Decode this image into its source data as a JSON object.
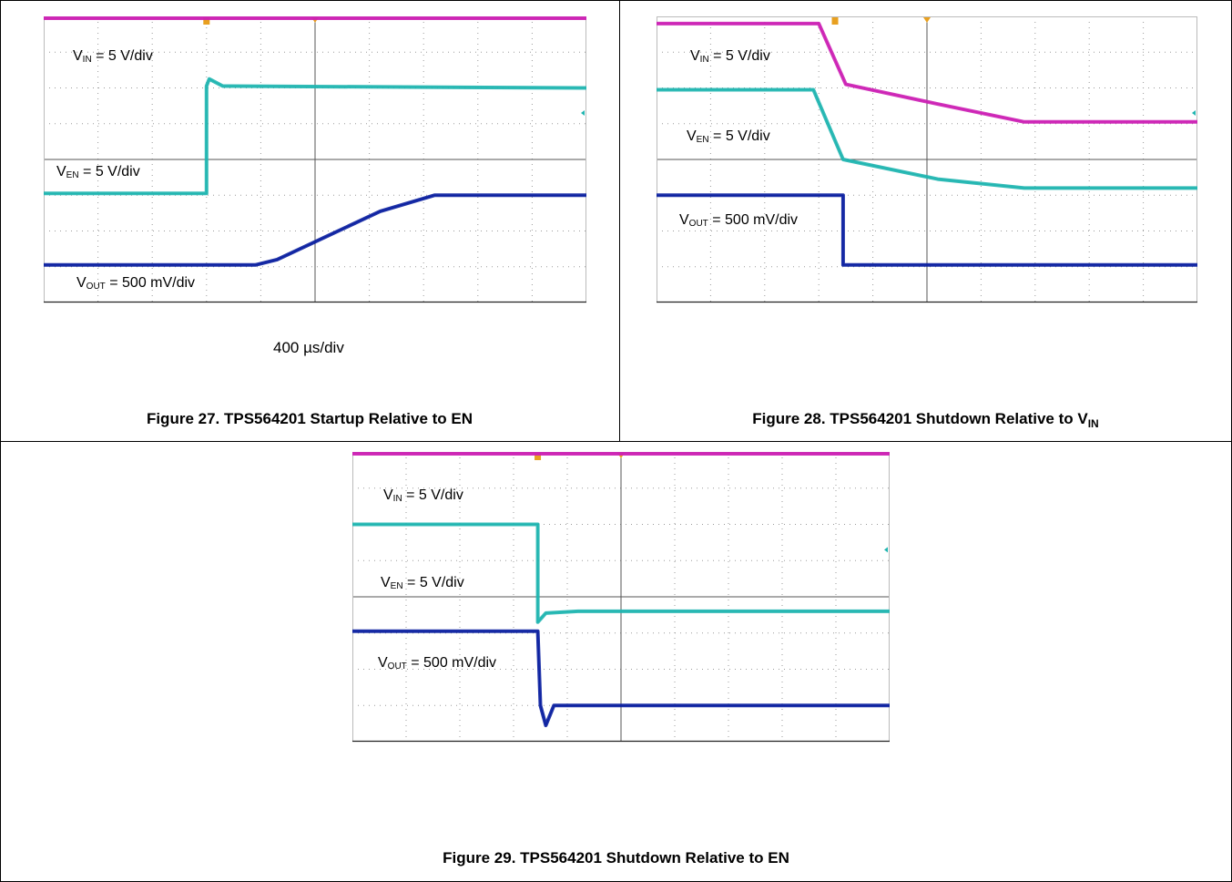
{
  "colors": {
    "vin": "#cc1fb4",
    "ven": "#1fb5b0",
    "vout": "#0a1fa0",
    "vin_label": "#8b2fa0",
    "ven_label": "#17c4d6",
    "vout_label": "#142a7a",
    "grid": "#9a9a9a",
    "marker": "#e8a020"
  },
  "figure27": {
    "caption": "Figure 27. TPS564201 Startup Relative to EN",
    "time_div": "400 µs/div",
    "labels": {
      "vin": {
        "v": "V",
        "sub": "IN",
        "rest": " = 5 V/div"
      },
      "ven": {
        "v": "V",
        "sub": "EN",
        "rest": " = 5 V/div"
      },
      "vout": {
        "v": "V",
        "sub": "OUT",
        "rest": " = 500 mV/div"
      }
    }
  },
  "figure28": {
    "caption_main": "Figure 28. TPS564201 Shutdown Relative to V",
    "caption_sub": "IN",
    "labels": {
      "vin": {
        "v": "V",
        "sub": "IN",
        "rest": " = 5 V/div"
      },
      "ven": {
        "v": "V",
        "sub": "EN",
        "rest": " = 5 V/div"
      },
      "vout": {
        "v": "V",
        "sub": "OUT",
        "rest": " = 500 mV/div"
      }
    }
  },
  "figure29": {
    "caption": "Figure 29. TPS564201 Shutdown Relative to EN",
    "labels": {
      "vin": {
        "v": "V",
        "sub": "IN",
        "rest": " = 5 V/div"
      },
      "ven": {
        "v": "V",
        "sub": "EN",
        "rest": " = 5 V/div"
      },
      "vout": {
        "v": "V",
        "sub": "OUT",
        "rest": " = 500 mV/div"
      }
    }
  },
  "chart_data": [
    {
      "type": "line",
      "title": "Figure 27. TPS564201 Startup Relative to EN",
      "x_unit": "div",
      "y_unit": "div",
      "xlim": [
        0,
        10
      ],
      "ylim": [
        0,
        8
      ],
      "grid": true,
      "series": [
        {
          "name": "V_IN = 5 V/div",
          "x": [
            0,
            10
          ],
          "y": [
            7.95,
            7.95
          ]
        },
        {
          "name": "V_EN = 5 V/div",
          "x": [
            0,
            3,
            3,
            3.05,
            3.3,
            10
          ],
          "y": [
            3.05,
            3.05,
            6.05,
            6.25,
            6.05,
            6.0
          ]
        },
        {
          "name": "V_OUT = 500 mV/div",
          "x": [
            0,
            3.9,
            4.3,
            6.2,
            7.2,
            10
          ],
          "y": [
            1.05,
            1.05,
            1.2,
            2.55,
            3.0,
            3.0
          ]
        }
      ]
    },
    {
      "type": "line",
      "title": "Figure 28. TPS564201 Shutdown Relative to VIN",
      "x_unit": "div",
      "y_unit": "div",
      "xlim": [
        0,
        10
      ],
      "ylim": [
        0,
        8
      ],
      "grid": true,
      "series": [
        {
          "name": "V_IN = 5 V/div",
          "x": [
            0,
            3.0,
            3.5,
            5.2,
            6.8,
            10
          ],
          "y": [
            7.8,
            7.8,
            6.1,
            5.55,
            5.05,
            5.05
          ]
        },
        {
          "name": "V_EN = 5 V/div",
          "x": [
            0,
            2.9,
            3.45,
            5.2,
            6.8,
            10
          ],
          "y": [
            5.95,
            5.95,
            4.0,
            3.45,
            3.2,
            3.2
          ]
        },
        {
          "name": "V_OUT = 500 mV/div",
          "x": [
            0,
            3.45,
            3.45,
            10
          ],
          "y": [
            3.0,
            3.0,
            1.05,
            1.05
          ]
        }
      ]
    },
    {
      "type": "line",
      "title": "Figure 29. TPS564201 Shutdown Relative to EN",
      "x_unit": "div",
      "y_unit": "div",
      "xlim": [
        0,
        10
      ],
      "ylim": [
        0,
        8
      ],
      "grid": true,
      "series": [
        {
          "name": "V_IN = 5 V/div",
          "x": [
            0,
            10
          ],
          "y": [
            7.95,
            7.95
          ]
        },
        {
          "name": "V_EN = 5 V/div",
          "x": [
            0,
            3.45,
            3.45,
            3.6,
            4.2,
            10
          ],
          "y": [
            6.0,
            6.0,
            3.3,
            3.55,
            3.6,
            3.6
          ]
        },
        {
          "name": "V_OUT = 500 mV/div",
          "x": [
            0,
            3.45,
            3.5,
            3.6,
            3.75,
            10
          ],
          "y": [
            3.05,
            3.05,
            1.0,
            0.45,
            1.0,
            1.0
          ]
        }
      ]
    }
  ]
}
